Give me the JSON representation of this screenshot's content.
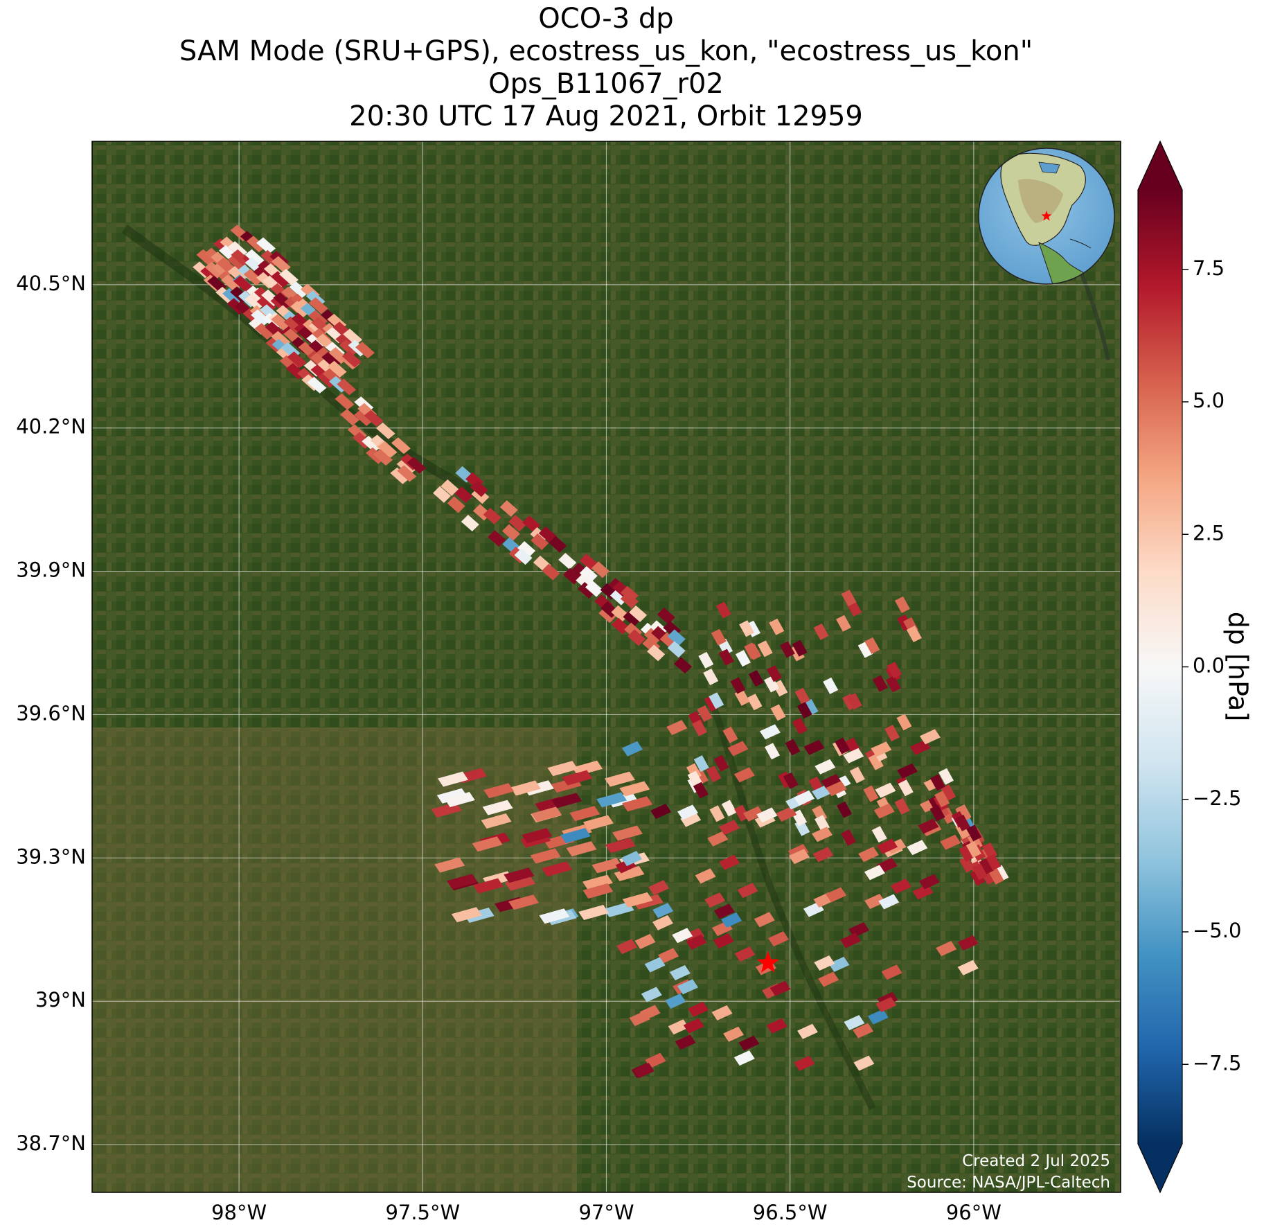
{
  "title": {
    "line1": "OCO-3 dp",
    "line2": "SAM Mode (SRU+GPS), ecostress_us_kon, \"ecostress_us_kon\"",
    "line3": "Ops_B11067_r02",
    "line4": "20:30 UTC 17 Aug 2021, Orbit 12959"
  },
  "map": {
    "lon_range": [
      -98.4,
      -95.6
    ],
    "lat_range": [
      38.6,
      40.8
    ],
    "lat_ticks": [
      {
        "value": 40.5,
        "label": "40.5°N"
      },
      {
        "value": 40.2,
        "label": "40.2°N"
      },
      {
        "value": 39.9,
        "label": "39.9°N"
      },
      {
        "value": 39.6,
        "label": "39.6°N"
      },
      {
        "value": 39.3,
        "label": "39.3°N"
      },
      {
        "value": 39.0,
        "label": "39°N"
      },
      {
        "value": 38.7,
        "label": "38.7°N"
      }
    ],
    "lon_ticks": [
      {
        "value": -98.0,
        "label": "98°W"
      },
      {
        "value": -97.5,
        "label": "97.5°W"
      },
      {
        "value": -97.0,
        "label": "97°W"
      },
      {
        "value": -96.5,
        "label": "96.5°W"
      },
      {
        "value": -96.0,
        "label": "96°W"
      }
    ],
    "target_marker": {
      "lon": -96.56,
      "lat": 39.08,
      "color": "#ff0000",
      "icon": "star-icon"
    },
    "background": "satellite imagery",
    "grid": true,
    "inset_globe": {
      "placement": "top-right",
      "icon": "globe-icon"
    }
  },
  "colorbar": {
    "label": "dp [hPa]",
    "range": [
      -9,
      9
    ],
    "colormap": "RdBu_r",
    "extend": "both",
    "ticks": [
      {
        "value": 7.5,
        "label": "7.5"
      },
      {
        "value": 5.0,
        "label": "5.0"
      },
      {
        "value": 2.5,
        "label": "2.5"
      },
      {
        "value": 0.0,
        "label": "0.0"
      },
      {
        "value": -2.5,
        "label": "−2.5"
      },
      {
        "value": -5.0,
        "label": "−5.0"
      },
      {
        "value": -7.5,
        "label": "−7.5"
      }
    ],
    "colors": [
      "#053061",
      "#2166ac",
      "#4393c3",
      "#92c5de",
      "#d1e5f0",
      "#f7f7f7",
      "#fddbc7",
      "#f4a582",
      "#d6604d",
      "#b2182b",
      "#67001f"
    ]
  },
  "footer": {
    "created": "Created 2 Jul 2025",
    "source": "Source: NASA/JPL-Caltech"
  }
}
